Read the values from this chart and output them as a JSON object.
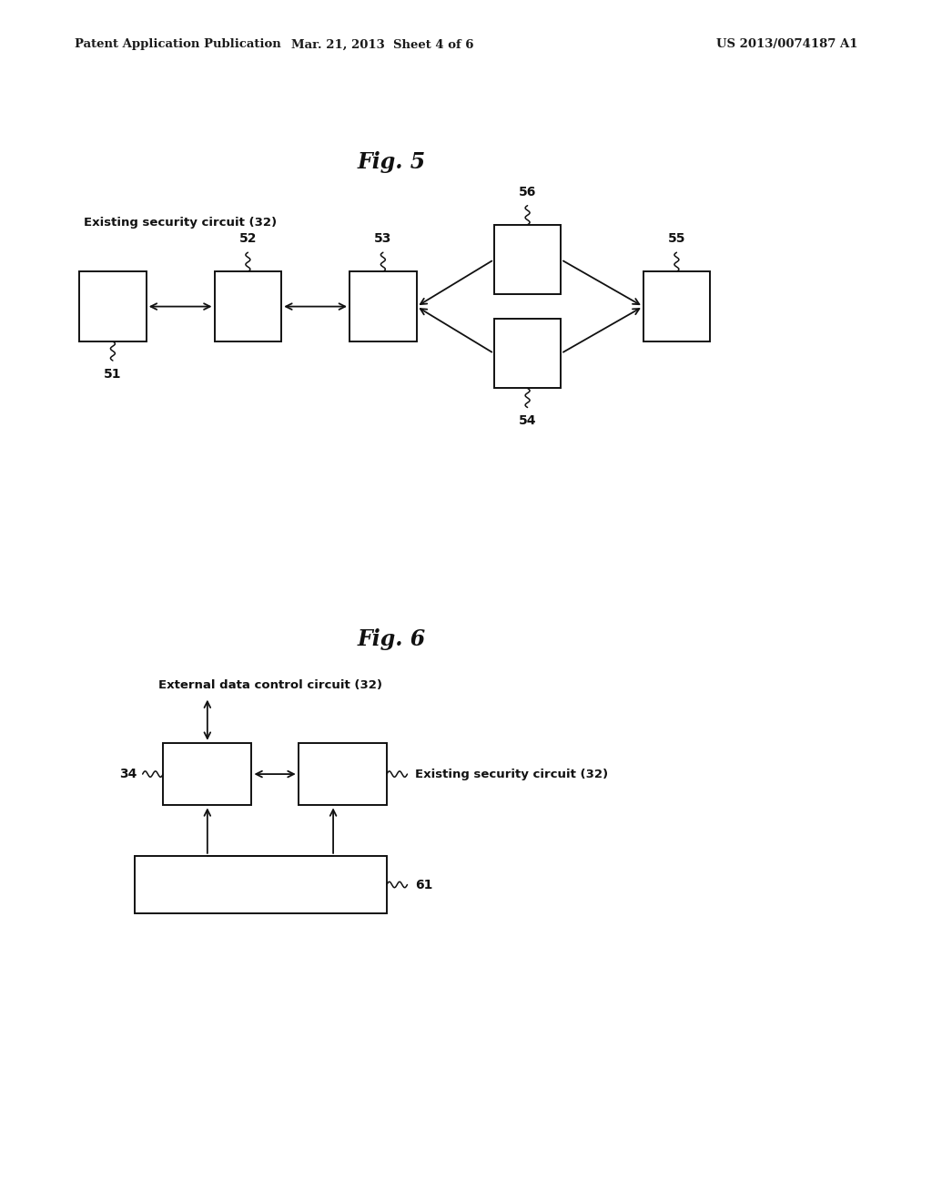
{
  "bg_color": "#ffffff",
  "header_left": "Patent Application Publication",
  "header_mid": "Mar. 21, 2013  Sheet 4 of 6",
  "header_right": "US 2013/0074187 A1",
  "fig5_title": "Fig. 5",
  "fig5_label": "Existing security circuit (32)",
  "fig6_title": "Fig. 6",
  "fig6_label_top": "External data control circuit (32)",
  "fig6_label_34": "34",
  "fig6_label_61": "61",
  "fig6_label_right": "Existing security circuit (32)"
}
